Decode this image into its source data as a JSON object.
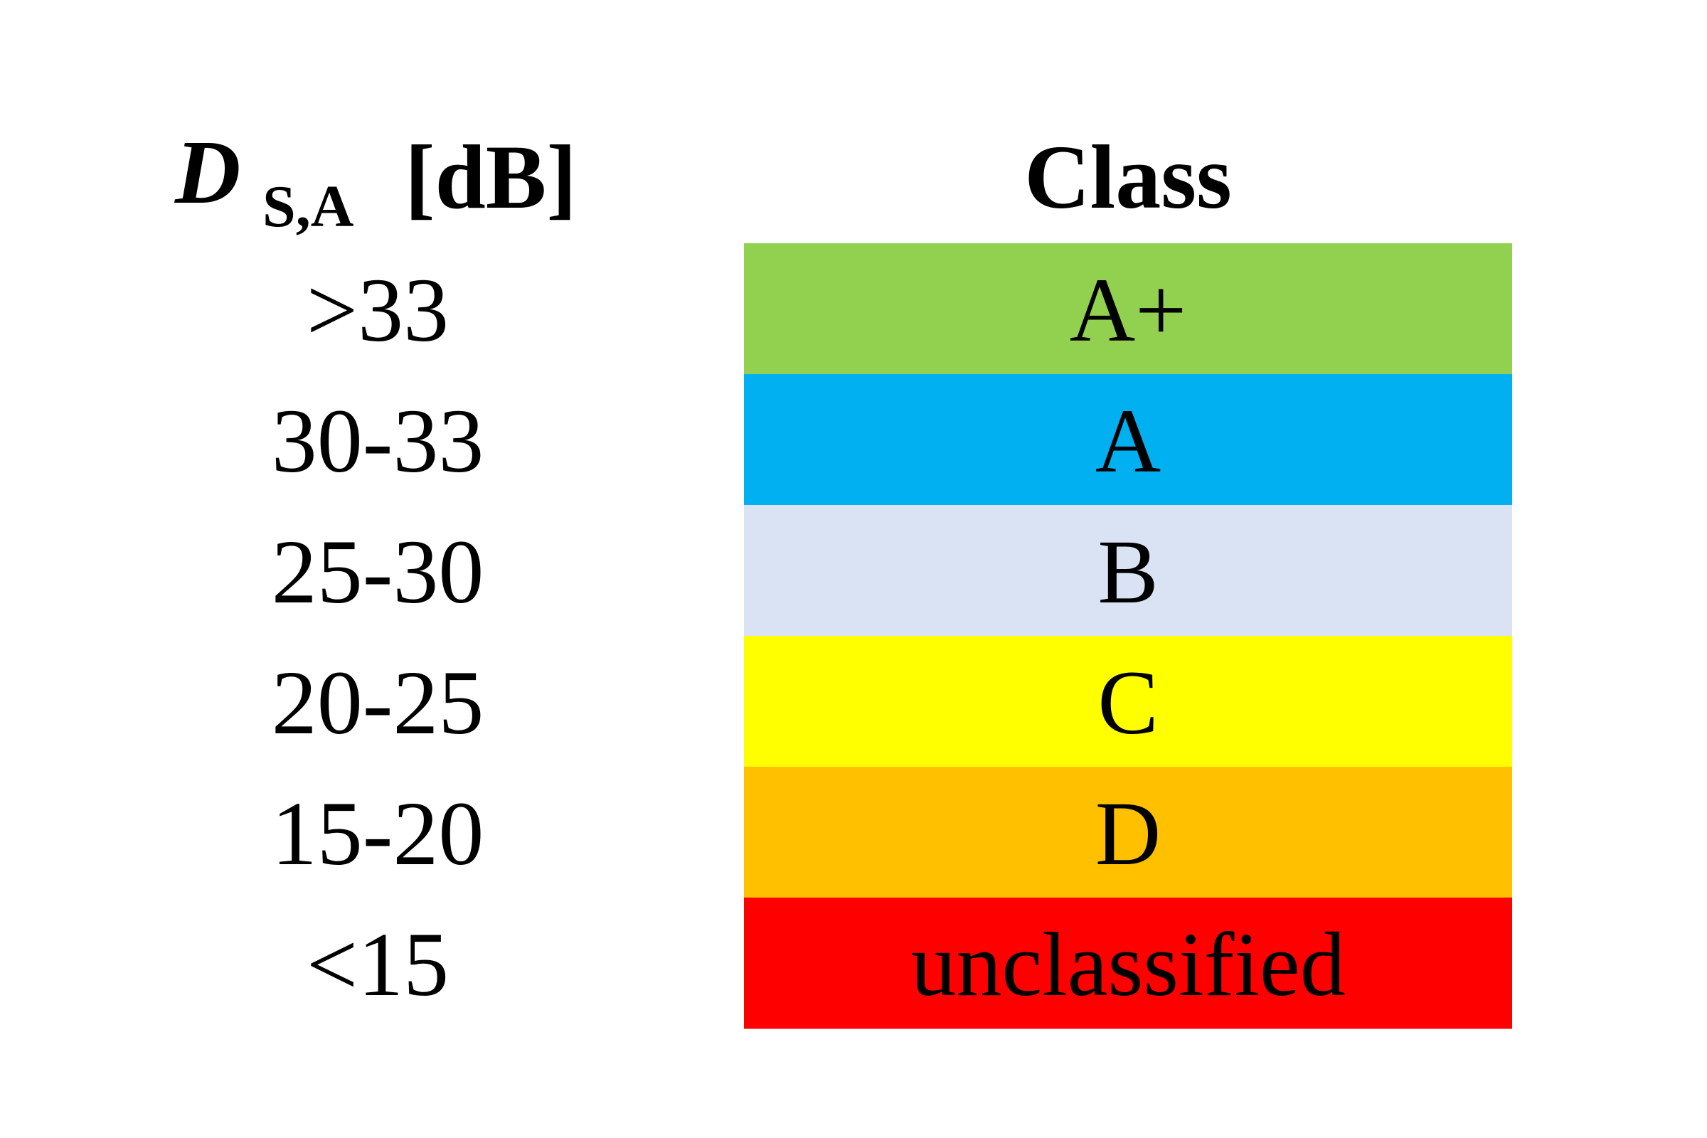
{
  "table": {
    "header": {
      "quantity": "D",
      "subscript": "S,A",
      "unit": "[dB]",
      "class": "Class"
    },
    "rows": [
      {
        "range": ">33",
        "class": "A+",
        "color": "#92d050"
      },
      {
        "range": "30-33",
        "class": "A",
        "color": "#00b0f0"
      },
      {
        "range": "25-30",
        "class": "B",
        "color": "#dae3f3"
      },
      {
        "range": "20-25",
        "class": "C",
        "color": "#ffff00"
      },
      {
        "range": "15-20",
        "class": "D",
        "color": "#ffc000"
      },
      {
        "range": "<15",
        "class": "unclassified",
        "color": "#ff0000"
      }
    ]
  }
}
